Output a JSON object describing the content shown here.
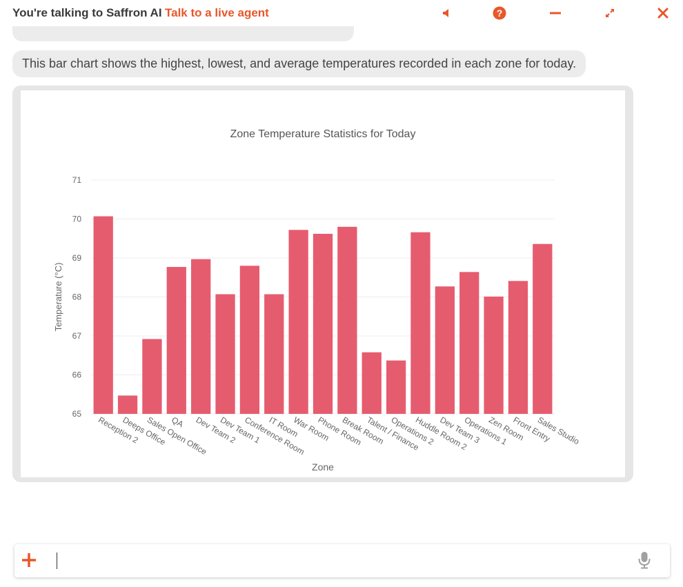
{
  "header": {
    "title": "You're talking to Saffron AI",
    "live_agent_link": "Talk to a live agent",
    "accent_color": "#e8572a",
    "icons": [
      "speaker-icon",
      "help-icon",
      "minimize-icon",
      "expand-icon",
      "close-icon"
    ]
  },
  "chat": {
    "message": "This bar chart shows the highest, lowest, and average temperatures recorded in each zone for today."
  },
  "chart_data": {
    "type": "bar",
    "title": "Zone Temperature Statistics for Today",
    "xlabel": "Zone",
    "ylabel": "Temperature (°C)",
    "ylim": [
      65,
      71
    ],
    "yticks": [
      65,
      66,
      67,
      68,
      69,
      70,
      71
    ],
    "bar_color": "#e65c6f",
    "grid": true,
    "categories": [
      "Reception 2",
      "Deeps Office",
      "Sales Open Office",
      "QA",
      "Dev Team 2",
      "Dev Team 1",
      "Conference Room",
      "IT Room",
      "War Room",
      "Phone Room",
      "Break Room",
      "Talent / Finance",
      "Operations 2",
      "Huddle Room 2",
      "Dev Team 3",
      "Operations 1",
      "Zen Room",
      "Front Entry",
      "Sales Studio"
    ],
    "values": [
      70.07,
      65.47,
      66.92,
      68.77,
      68.97,
      68.07,
      68.8,
      68.07,
      69.72,
      69.62,
      69.8,
      66.58,
      66.37,
      69.66,
      68.27,
      68.64,
      68.01,
      68.41,
      69.36
    ]
  },
  "composer": {
    "value": "",
    "placeholder": "",
    "plus_icon": "plus-icon",
    "mic_icon": "microphone-icon"
  }
}
